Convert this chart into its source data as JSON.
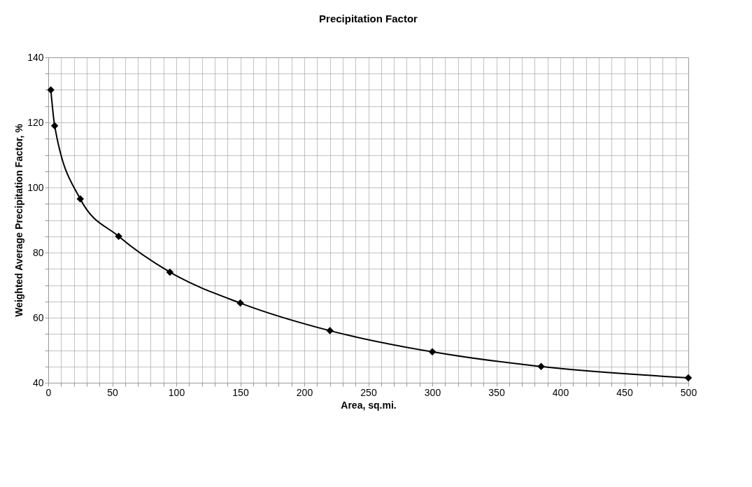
{
  "chart_data": {
    "type": "line",
    "title": "Precipitation Factor",
    "xlabel": "Area, sq.mi.",
    "ylabel": "Weighted Average Precipitation Factor, %",
    "x": [
      2,
      5,
      25,
      55,
      95,
      150,
      220,
      300,
      385,
      500
    ],
    "series": [
      {
        "color": "#000000",
        "values": [
          130,
          119,
          96.5,
          85,
          74,
          64.5,
          56,
          49.5,
          45,
          41.5
        ]
      }
    ],
    "xlim": [
      0,
      500
    ],
    "ylim": [
      40,
      140
    ],
    "xticks": [
      0,
      {
        "value": 10,
        "label": null
      },
      {
        "value": 20,
        "label": null
      },
      {
        "value": 30,
        "label": null
      },
      {
        "value": 40,
        "label": null
      },
      50,
      {
        "value": 60,
        "label": null
      },
      {
        "value": 70,
        "label": null
      },
      {
        "value": 80,
        "label": null
      },
      {
        "value": 90,
        "label": null
      },
      100,
      {
        "value": 110,
        "label": null
      },
      {
        "value": 120,
        "label": null
      },
      {
        "value": 130,
        "label": null
      },
      {
        "value": 140,
        "label": null
      },
      150,
      {
        "value": 160,
        "label": null
      },
      {
        "value": 170,
        "label": null
      },
      {
        "value": 180,
        "label": null
      },
      {
        "value": 190,
        "label": null
      },
      200,
      {
        "value": 210,
        "label": null
      },
      {
        "value": 220,
        "label": null
      },
      {
        "value": 230,
        "label": null
      },
      {
        "value": 240,
        "label": null
      },
      250,
      {
        "value": 260,
        "label": null
      },
      {
        "value": 270,
        "label": null
      },
      {
        "value": 280,
        "label": null
      },
      {
        "value": 290,
        "label": null
      },
      300,
      {
        "value": 310,
        "label": null
      },
      {
        "value": 320,
        "label": null
      },
      {
        "value": 330,
        "label": null
      },
      {
        "value": 340,
        "label": null
      },
      350,
      {
        "value": 360,
        "label": null
      },
      {
        "value": 370,
        "label": null
      },
      {
        "value": 380,
        "label": null
      },
      {
        "value": 390,
        "label": null
      },
      400,
      {
        "value": 410,
        "label": null
      },
      {
        "value": 420,
        "label": null
      },
      {
        "value": 430,
        "label": null
      },
      {
        "value": 440,
        "label": null
      },
      450,
      {
        "value": 460,
        "label": null
      },
      {
        "value": 470,
        "label": null
      },
      {
        "value": 480,
        "label": null
      },
      {
        "value": 490,
        "label": null
      },
      500
    ],
    "yticks": [
      40,
      {
        "value": 45,
        "label": null
      },
      {
        "value": 50,
        "label": null
      },
      {
        "value": 55,
        "label": null
      },
      60,
      {
        "value": 65,
        "label": null
      },
      {
        "value": 70,
        "label": null
      },
      {
        "value": 75,
        "label": null
      },
      80,
      {
        "value": 85,
        "label": null
      },
      {
        "value": 90,
        "label": null
      },
      {
        "value": 95,
        "label": null
      },
      100,
      {
        "value": 105,
        "label": null
      },
      {
        "value": 110,
        "label": null
      },
      {
        "value": 115,
        "label": null
      },
      120,
      {
        "value": 125,
        "label": null
      },
      {
        "value": 130,
        "label": null
      },
      {
        "value": 135,
        "label": null
      },
      140
    ],
    "grid": true,
    "marker": "diamond",
    "line_style": "solid",
    "legend": false
  }
}
